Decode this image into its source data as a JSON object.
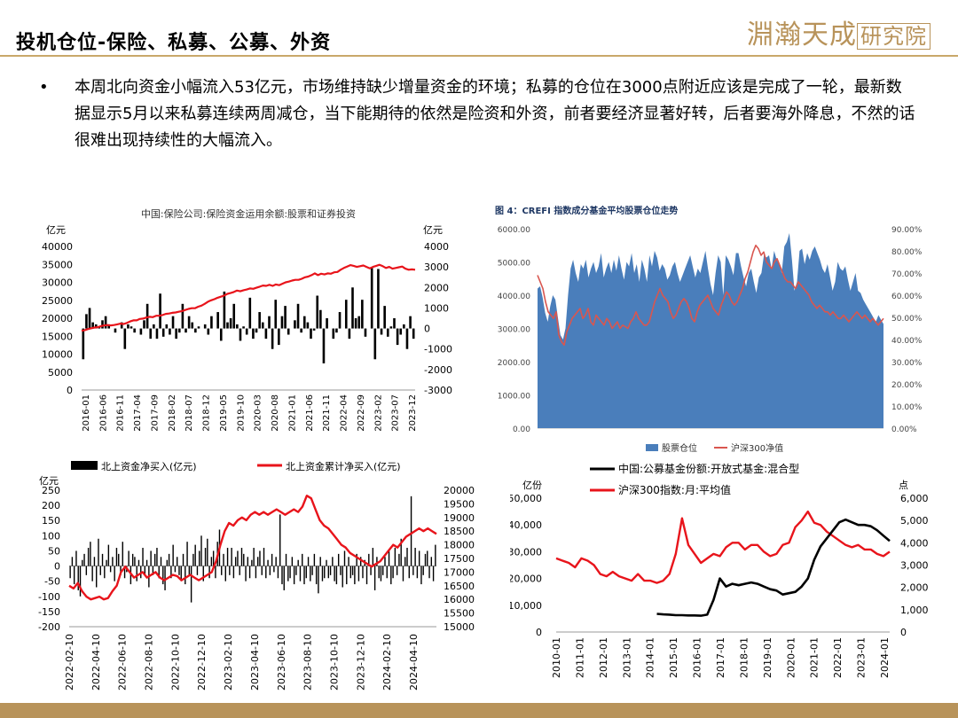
{
  "slide": {
    "title": "投机仓位-保险、私募、公募、外资",
    "logo_text": "淵瀚天成",
    "logo_boxed": "研究院",
    "bullet": "本周北向资金小幅流入53亿元，市场维持缺少增量资金的环境；私募的仓位在3000点附近应该是完成了一轮，最新数据显示5月以来私募连续两周减仓，当下能期待的依然是险资和外资，前者要经济显著好转，后者要海外降息，不然的话很难出现持续性的大幅流入。"
  },
  "colors": {
    "red": "#e8141b",
    "black": "#000000",
    "blue": "#4a7ebb",
    "pink_line": "#d9564f",
    "gold": "#b8935a"
  },
  "chart_data": [
    {
      "id": "insurance",
      "type": "bar",
      "title": "中国:保险公司:保险资金运用余额:股票和证券投资",
      "left_unit": "亿元",
      "right_unit": "亿元",
      "left_ticks": [
        "40000",
        "35000",
        "30000",
        "25000",
        "20000",
        "15000",
        "10000",
        "5000",
        "0"
      ],
      "right_ticks": [
        "4000",
        "3000",
        "2000",
        "1000",
        "0",
        "-1000",
        "-2000",
        "-3000"
      ],
      "ylim_left": [
        0,
        40000
      ],
      "ylim_right": [
        -3000,
        4000
      ],
      "x_ticks": [
        "2016-01",
        "2016-06",
        "2016-11",
        "2017-04",
        "2017-09",
        "2018-02",
        "2018-07",
        "2018-12",
        "2019-05",
        "2019-10",
        "2020-03",
        "2020-08",
        "2021-01",
        "2021-06",
        "2021-11",
        "2022-04",
        "2022-09",
        "2023-02",
        "2023-07",
        "2023-12"
      ],
      "bars_right_axis": [
        -1500,
        700,
        1000,
        300,
        200,
        100,
        400,
        600,
        200,
        0,
        -200,
        0,
        300,
        -1000,
        200,
        100,
        -200,
        0,
        -300,
        400,
        1200,
        -500,
        200,
        -500,
        1700,
        -400,
        200,
        -300,
        600,
        -500,
        -200,
        1200,
        -200,
        600,
        300,
        -200,
        100,
        0,
        200,
        -300,
        600,
        0,
        800,
        -600,
        1800,
        300,
        500,
        1200,
        200,
        -600,
        100,
        -300,
        1500,
        -500,
        -200,
        800,
        300,
        -500,
        600,
        -1000,
        1400,
        -800,
        600,
        1100,
        -300,
        0,
        400,
        1200,
        -200,
        600,
        300,
        -500,
        -100,
        1600,
        900,
        -1700,
        500,
        0,
        -500,
        -200,
        800,
        0,
        1400,
        -500,
        2000,
        500,
        600,
        1400,
        -400,
        0,
        3000,
        -1500,
        2900,
        -300,
        1100,
        -400,
        100,
        500,
        -800,
        -300,
        200,
        -1000,
        600,
        -500
      ],
      "line_left_axis": [
        16500,
        16700,
        17000,
        17200,
        17400,
        17500,
        17800,
        18000,
        18100,
        18000,
        18100,
        18300,
        18500,
        18400,
        18700,
        19100,
        19400,
        19400,
        19800,
        19900,
        20200,
        20400,
        20300,
        20700,
        20700,
        20900,
        21200,
        21300,
        21500,
        21600,
        21800,
        22000,
        22300,
        22600,
        22800,
        22800,
        23200,
        23500,
        24000,
        24600,
        25000,
        25300,
        25700,
        26000,
        26300,
        26800,
        27000,
        27300,
        27700,
        27500,
        27800,
        28000,
        28300,
        28200,
        28500,
        28800,
        29100,
        29000,
        29300,
        29000,
        29400,
        29200,
        29600,
        30000,
        30200,
        30500,
        30700,
        30700,
        31000,
        31400,
        31600,
        32000,
        32500,
        32000,
        32400,
        32200,
        32500,
        32400,
        32800,
        32900,
        33500,
        34000,
        34400,
        34800,
        34600,
        34300,
        34500,
        34700,
        34300,
        33900,
        34300,
        34600,
        34900,
        34500,
        34000,
        34300,
        33800,
        34000,
        34200,
        34400,
        33800,
        33500,
        33600,
        33500
      ]
    },
    {
      "id": "crefi",
      "type": "area",
      "title": "图 4：CREFI 指数成分基金平均股票仓位走势",
      "left_ticks": [
        "6000.00",
        "5000.00",
        "4000.00",
        "3000.00",
        "2000.00",
        "1000.00",
        "0.00"
      ],
      "right_ticks": [
        "90.00%",
        "80.00%",
        "70.00%",
        "60.00%",
        "50.00%",
        "40.00%",
        "30.00%",
        "20.00%",
        "10.00%",
        "0.00%"
      ],
      "ylim_left": [
        0,
        6000
      ],
      "ylim_right": [
        0,
        90
      ],
      "legend": [
        "股票仓位",
        "沪深300净值"
      ],
      "position_series_right_axis": [
        63,
        64,
        59,
        52,
        48,
        55,
        60,
        58,
        50,
        42,
        40,
        45,
        60,
        72,
        76,
        70,
        66,
        74,
        72,
        76,
        68,
        72,
        75,
        70,
        73,
        79,
        68,
        72,
        75,
        70,
        76,
        71,
        78,
        72,
        67,
        75,
        73,
        79,
        70,
        74,
        66,
        76,
        72,
        66,
        78,
        73,
        80,
        77,
        71,
        74,
        72,
        67,
        69,
        73,
        75,
        70,
        66,
        69,
        72,
        75,
        78,
        73,
        68,
        72,
        70,
        75,
        80,
        72,
        65,
        60,
        70,
        78,
        75,
        60,
        78,
        76,
        73,
        69,
        79,
        79,
        73,
        68,
        64,
        70,
        72,
        66,
        61,
        68,
        70,
        78,
        77,
        78,
        72,
        80,
        76,
        74,
        70,
        82,
        84,
        88,
        76,
        62,
        66,
        80,
        81,
        74,
        79,
        76,
        80,
        82,
        79,
        76,
        72,
        70,
        74,
        68,
        62,
        66,
        75,
        72,
        71,
        73,
        67,
        62,
        66,
        70,
        62,
        61,
        58,
        56,
        54,
        52,
        50,
        48,
        51,
        49,
        47
      ],
      "csi300_left_axis": [
        4600,
        4400,
        4200,
        3800,
        3500,
        3400,
        3300,
        3500,
        2800,
        2600,
        2500,
        2900,
        3100,
        3300,
        3400,
        3500,
        3600,
        3300,
        3400,
        3600,
        3200,
        3100,
        3400,
        3300,
        3200,
        3100,
        3300,
        3200,
        3000,
        3100,
        3200,
        3000,
        3100,
        3050,
        3000,
        3200,
        3300,
        3500,
        3300,
        3200,
        3100,
        3100,
        3200,
        3500,
        3800,
        4000,
        4200,
        4000,
        3900,
        3800,
        3500,
        3300,
        3400,
        3600,
        3800,
        3900,
        3800,
        3600,
        3300,
        3200,
        3500,
        3700,
        3800,
        3900,
        4000,
        3800,
        3600,
        3500,
        3400,
        3700,
        3900,
        4100,
        4000,
        3800,
        3700,
        3800,
        4000,
        4200,
        4500,
        4700,
        5000,
        5300,
        5500,
        5400,
        5200,
        5300,
        5000,
        4900,
        4800,
        5000,
        5100,
        4900,
        4700,
        4500,
        4400,
        4400,
        4300,
        4200,
        4400,
        4300,
        4200,
        4100,
        4000,
        3800,
        3700,
        3600,
        3700,
        3600,
        3500,
        3500,
        3400,
        3500,
        3400,
        3300,
        3300,
        3400,
        3300,
        3200,
        3300,
        3400,
        3500,
        3400,
        3300,
        3400,
        3300,
        3200,
        3300,
        3200,
        3100,
        3200,
        3300
      ]
    },
    {
      "id": "northbound",
      "type": "bar",
      "legend": [
        "北上资金净买入(亿元)",
        "北上资金累计净买入(亿元)"
      ],
      "left_unit": "亿元",
      "left_ticks": [
        "250",
        "200",
        "150",
        "100",
        "50",
        "0",
        "-50",
        "-100",
        "-150",
        "-200"
      ],
      "right_ticks": [
        "20000",
        "19500",
        "19000",
        "18500",
        "18000",
        "17500",
        "17000",
        "16500",
        "16000",
        "15500",
        "15000"
      ],
      "ylim_left": [
        -200,
        250
      ],
      "ylim_right": [
        15000,
        20000
      ],
      "x_ticks": [
        "2022-02-10",
        "2022-04-10",
        "2022-06-10",
        "2022-08-10",
        "2022-10-10",
        "2022-12-10",
        "2023-02-10",
        "2023-04-10",
        "2023-06-10",
        "2023-08-10",
        "2023-10-10",
        "2023-12-10",
        "2024-02-10",
        "2024-04-10"
      ],
      "bars_left_axis": [
        -40,
        30,
        -60,
        50,
        -80,
        -100,
        20,
        40,
        -30,
        60,
        80,
        -50,
        30,
        -70,
        90,
        -30,
        40,
        -40,
        20,
        70,
        -20,
        30,
        -50,
        60,
        40,
        -30,
        80,
        -40,
        -20,
        50,
        -60,
        40,
        30,
        -50,
        20,
        -40,
        60,
        -30,
        20,
        -70,
        50,
        -30,
        40,
        60,
        -40,
        30,
        -60,
        -80,
        20,
        40,
        -40,
        70,
        -20,
        30,
        -30,
        -50,
        40,
        -60,
        80,
        -30,
        -120,
        40,
        70,
        -30,
        50,
        100,
        -50,
        60,
        90,
        -40,
        30,
        50,
        -40,
        80,
        120,
        -30,
        40,
        -50,
        60,
        -30,
        60,
        -40,
        30,
        50,
        -30,
        60,
        40,
        -50,
        30,
        -40,
        20,
        60,
        -40,
        30,
        50,
        -30,
        60,
        -40,
        20,
        -30,
        40,
        -20,
        30,
        -40,
        170,
        -60,
        -80,
        40,
        -50,
        -40,
        30,
        -60,
        -30,
        20,
        -50,
        40,
        -60,
        -40,
        30,
        -50,
        -30,
        40,
        -60,
        -90,
        30,
        -50,
        -40,
        20,
        -40,
        -30,
        30,
        -50,
        -60,
        40,
        -30,
        -70,
        50,
        -60,
        30,
        -40,
        -30,
        -60,
        40,
        -50,
        30,
        -40,
        20,
        -60,
        40,
        -30,
        60,
        -80,
        30,
        -40,
        -50,
        -30,
        30,
        -40,
        50,
        -60,
        -40,
        60,
        -30,
        40,
        90,
        -50,
        30,
        60,
        -40,
        230,
        -30,
        60,
        -40,
        50,
        -60,
        -30,
        40,
        50,
        -40,
        30,
        -50,
        70
      ],
      "line_right_axis": [
        16500,
        16400,
        16600,
        16300,
        16100,
        16000,
        16050,
        16100,
        16000,
        16050,
        16300,
        16500,
        17000,
        17200,
        17000,
        16800,
        16900,
        17000,
        16800,
        16900,
        17000,
        16800,
        16700,
        16800,
        16900,
        16850,
        16700,
        16800,
        16900,
        16800,
        16700,
        16800,
        16900,
        17000,
        17400,
        18000,
        18500,
        18800,
        18700,
        18900,
        19000,
        18900,
        19100,
        19200,
        19100,
        19200,
        19100,
        19200,
        19300,
        19200,
        19100,
        19200,
        19300,
        19200,
        19400,
        19800,
        19700,
        19300,
        18900,
        18700,
        18600,
        18400,
        18200,
        18000,
        17900,
        17700,
        17600,
        17500,
        17400,
        17300,
        17200,
        17300,
        17400,
        17600,
        17800,
        18000,
        17900,
        18100,
        18300,
        18400,
        18500,
        18600,
        18500,
        18600,
        18500,
        18400
      ]
    },
    {
      "id": "mutual_fund",
      "type": "line",
      "legend": [
        "中国:公募基金份额:开放式基金:混合型",
        "沪深300指数:月:平均值"
      ],
      "left_unit": "亿份",
      "right_unit": "点",
      "left_ticks": [
        "50,000",
        "40,000",
        "30,000",
        "20,000",
        "10,000",
        "0"
      ],
      "right_ticks": [
        "6,000",
        "5,000",
        "4,000",
        "3,000",
        "2,000",
        "1,000",
        "0"
      ],
      "ylim_left": [
        0,
        50000
      ],
      "ylim_right": [
        0,
        6000
      ],
      "x_ticks": [
        "2010-01",
        "2011-01",
        "2012-01",
        "2013-01",
        "2014-01",
        "2015-01",
        "2016-01",
        "2017-01",
        "2018-01",
        "2019-01",
        "2020-01",
        "2021-01",
        "2022-01",
        "2023-01",
        "2024-01"
      ],
      "fund_share": [
        null,
        null,
        null,
        null,
        null,
        null,
        6800,
        6600,
        6500,
        6300,
        6300,
        6200,
        6200,
        6100,
        6500,
        12000,
        20000,
        17000,
        18000,
        17500,
        18000,
        18500,
        18000,
        17000,
        16000,
        15500,
        14000,
        14500,
        15000,
        17000,
        20000,
        27000,
        32000,
        35000,
        38000,
        41000,
        42000,
        41000,
        40000,
        40000,
        39500,
        38000,
        36000,
        34000
      ],
      "csi300_avg": [
        3300,
        3200,
        3100,
        2900,
        3300,
        3200,
        3000,
        2600,
        2500,
        2700,
        2500,
        2400,
        2300,
        2600,
        2300,
        2300,
        2200,
        2300,
        2600,
        3500,
        5100,
        3900,
        3500,
        3100,
        3300,
        3500,
        3400,
        3800,
        4000,
        4000,
        3700,
        3900,
        3900,
        3600,
        3400,
        3500,
        3900,
        4000,
        4700,
        5000,
        5400,
        4900,
        4800,
        4500,
        4300,
        4100,
        3900,
        3800,
        3900,
        3700,
        3700,
        3500,
        3400,
        3600
      ]
    }
  ]
}
